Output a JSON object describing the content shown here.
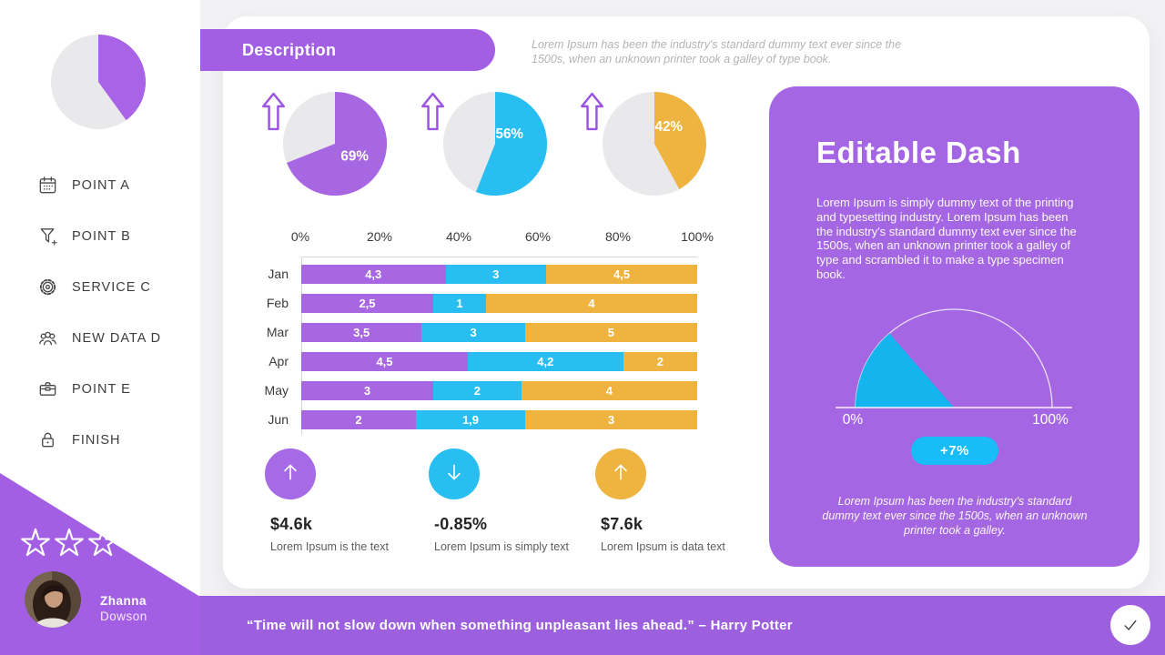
{
  "header": {
    "title": "Description",
    "subtitle": "Lorem Ipsum has been the industry's standard dummy text ever since the 1500s, when an unknown printer took a galley of type book."
  },
  "sidebar": {
    "menu": [
      {
        "label": "POINT A",
        "icon": "calendar-icon"
      },
      {
        "label": "POINT B",
        "icon": "funnel-icon"
      },
      {
        "label": "SERVICE C",
        "icon": "gear-icon"
      },
      {
        "label": "NEW DATA D",
        "icon": "users-icon"
      },
      {
        "label": "POINT E",
        "icon": "briefcase-icon"
      },
      {
        "label": "FINISH",
        "icon": "lock-icon"
      }
    ],
    "rating_stars": 3,
    "profile": {
      "first_name": "Zhanna",
      "last_name": "Dowson"
    }
  },
  "chart_data": [
    {
      "id": "pie-1",
      "type": "pie",
      "percent": 69,
      "label": "69%",
      "color": "#A867E2",
      "rest_color": "#E9E8EA",
      "trend": "up"
    },
    {
      "id": "pie-2",
      "type": "pie",
      "percent": 56,
      "label": "56%",
      "color": "#29BEF2",
      "rest_color": "#E9E8EA",
      "trend": "up"
    },
    {
      "id": "pie-3",
      "type": "pie",
      "percent": 42,
      "label": "42%",
      "color": "#EFB43F",
      "rest_color": "#E9E8EA",
      "trend": "up"
    },
    {
      "id": "monthly-stacked-bar",
      "type": "bar",
      "stacked_percent": true,
      "x_ticks": [
        "0%",
        "20%",
        "40%",
        "60%",
        "80%",
        "100%"
      ],
      "categories": [
        "Jan",
        "Feb",
        "Mar",
        "Apr",
        "May",
        "Jun"
      ],
      "series": [
        {
          "name": "purple-series",
          "color": "#A867E2",
          "values": [
            4.3,
            2.5,
            3.5,
            4.5,
            3,
            2
          ]
        },
        {
          "name": "blue-series",
          "color": "#29BEF2",
          "values": [
            3,
            1,
            3,
            4.2,
            2,
            1.9
          ]
        },
        {
          "name": "yellow-series",
          "color": "#EFB43F",
          "values": [
            4.5,
            4,
            5,
            2,
            4,
            3
          ]
        }
      ],
      "value_labels": [
        [
          "4,3",
          "3",
          "4,5"
        ],
        [
          "2,5",
          "1",
          "4"
        ],
        [
          "3,5",
          "3",
          "5"
        ],
        [
          "4,5",
          "4,2",
          "2"
        ],
        [
          "3",
          "2",
          "4"
        ],
        [
          "2",
          "1,9",
          "3"
        ]
      ]
    },
    {
      "id": "gauge",
      "type": "gauge",
      "min_label": "0%",
      "max_label": "100%",
      "badge": "+7%",
      "wedge_color": "#14B4EF"
    }
  ],
  "kpis": [
    {
      "value": "$4.6k",
      "caption": "Lorem Ipsum is the text",
      "trend": "up",
      "color": "#A76AE6"
    },
    {
      "value": "-0.85%",
      "caption": "Lorem Ipsum is simply text",
      "trend": "down",
      "color": "#29BEF2"
    },
    {
      "value": "$7.6k",
      "caption": "Lorem Ipsum is data text",
      "trend": "up",
      "color": "#EFB43F"
    }
  ],
  "panel": {
    "title": "Editable Dash",
    "body": "Lorem Ipsum is simply dummy text of the printing and typesetting industry. Lorem Ipsum has been the industry's standard dummy text ever since the 1500s, when an unknown printer took a galley of type and scrambled it to make a type specimen book.",
    "footnote": "Lorem Ipsum has been the industry's standard dummy text ever since the 1500s, when an unknown printer took a galley."
  },
  "footer": {
    "quote": "“Time will not slow down when something unpleasant lies ahead.” – Harry Potter"
  }
}
